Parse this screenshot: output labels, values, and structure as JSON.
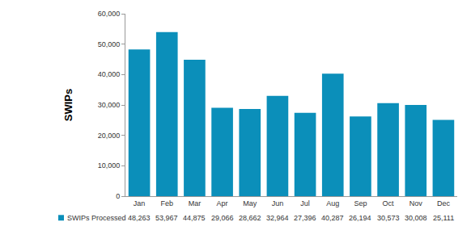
{
  "chart_data": {
    "type": "bar",
    "categories": [
      "Jan",
      "Feb",
      "Mar",
      "Apr",
      "May",
      "Jun",
      "Jul",
      "Aug",
      "Sep",
      "Oct",
      "Nov",
      "Dec"
    ],
    "series": [
      {
        "name": "SWIPs Processed",
        "color": "#0b8fba",
        "values": [
          48263,
          53967,
          44875,
          29066,
          28662,
          32964,
          27396,
          40287,
          26194,
          30573,
          30008,
          25111
        ],
        "value_labels": [
          "48,263",
          "53,967",
          "44,875",
          "29,066",
          "28,662",
          "32,964",
          "27,396",
          "40,287",
          "26,194",
          "30,573",
          "30,008",
          "25,111"
        ]
      }
    ],
    "y_label": "SWIPs",
    "ylim": [
      0,
      60000
    ],
    "yticks": [
      0,
      {
        "value": 10000,
        "label": "10,000"
      },
      {
        "value": 20000,
        "label": "20,000"
      },
      {
        "value": 30000,
        "label": "30,000"
      },
      {
        "value": 40000,
        "label": "40,000"
      },
      {
        "value": 50000,
        "label": "50,000"
      },
      {
        "value": 60000,
        "label": "60,000"
      }
    ],
    "grid": false,
    "data_labels": true
  }
}
